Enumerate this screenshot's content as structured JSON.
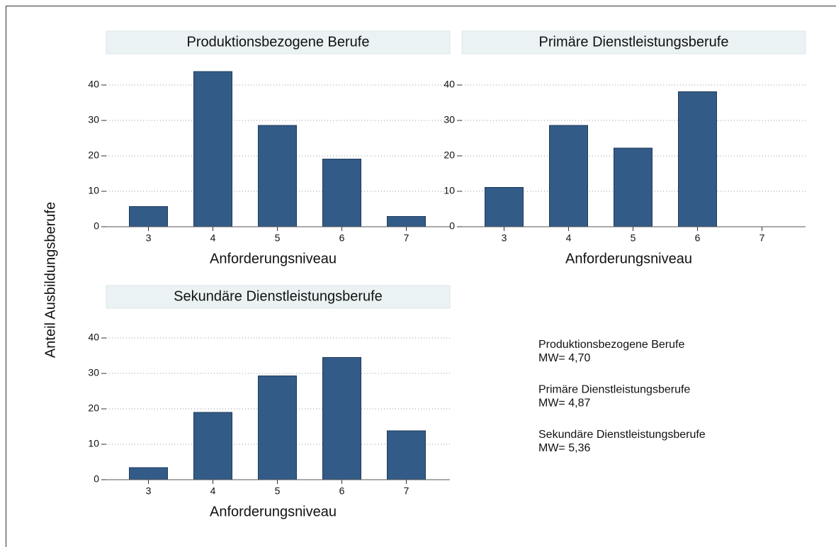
{
  "ylabel": "Anteil Ausbildungsberufe",
  "notes": [
    {
      "group": "Produktionsbezogene Berufe",
      "mean": "MW= 4,70"
    },
    {
      "group": "Primäre Dienstleistungsberufe",
      "mean": "MW= 4,87"
    },
    {
      "group": "Sekundäre Dienstleistungsberufe",
      "mean": "MW= 5,36"
    }
  ],
  "chart_data": [
    {
      "type": "bar",
      "title": "Produktionsbezogene Berufe",
      "xlabel": "Anforderungsniveau",
      "categories": [
        "3",
        "4",
        "5",
        "6",
        "7"
      ],
      "values": [
        5.7,
        43.8,
        28.6,
        19.1,
        2.9
      ],
      "color": "#335b87",
      "ylim": [
        0,
        44
      ],
      "yticks": [
        0,
        10,
        20,
        30,
        40
      ],
      "grid": true
    },
    {
      "type": "bar",
      "title": "Primäre Dienstleistungsberufe",
      "xlabel": "Anforderungsniveau",
      "categories": [
        "3",
        "4",
        "5",
        "6",
        "7"
      ],
      "values": [
        11.1,
        28.6,
        22.2,
        38.1,
        0
      ],
      "color": "#335b87",
      "ylim": [
        0,
        44
      ],
      "yticks": [
        0,
        10,
        20,
        30,
        40
      ],
      "grid": true
    },
    {
      "type": "bar",
      "title": "Sekundäre Dienstleistungsberufe",
      "xlabel": "Anforderungsniveau",
      "categories": [
        "3",
        "4",
        "5",
        "6",
        "7"
      ],
      "values": [
        3.4,
        19.0,
        29.3,
        34.5,
        13.8
      ],
      "color": "#335b87",
      "ylim": [
        0,
        44
      ],
      "yticks": [
        0,
        10,
        20,
        30,
        40
      ],
      "grid": true
    }
  ]
}
